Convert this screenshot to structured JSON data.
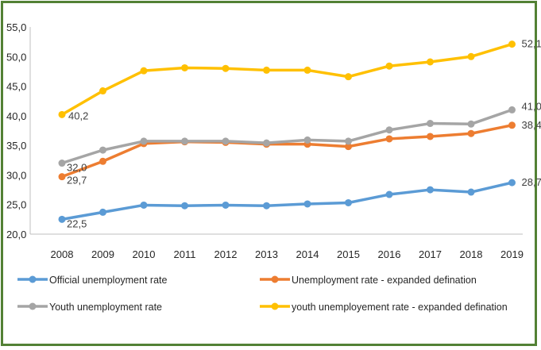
{
  "colors": {
    "frame": "#538135",
    "axis": "#bfbfbf"
  },
  "chart_data": {
    "type": "line",
    "title": "",
    "xlabel": "",
    "ylabel": "",
    "x": [
      "2008",
      "2009",
      "2010",
      "2011",
      "2012",
      "2013",
      "2014",
      "2015",
      "2016",
      "2017",
      "2018",
      "2019"
    ],
    "ylim": [
      20,
      55
    ],
    "ytick_labels": [
      "20,0",
      "25,0",
      "30,0",
      "35,0",
      "40,0",
      "45,0",
      "50,0",
      "55,0"
    ],
    "grid": false,
    "legend_position": "bottom",
    "series": [
      {
        "name": "Official unemployment rate",
        "color": "#5b9bd5",
        "values": [
          22.5,
          23.7,
          24.9,
          24.8,
          24.9,
          24.8,
          25.1,
          25.3,
          26.7,
          27.5,
          27.1,
          28.7
        ],
        "labels": [
          {
            "index": 0,
            "text": "22,5"
          },
          {
            "index": 11,
            "text": "28,7"
          }
        ]
      },
      {
        "name": "Unemployment rate - expanded defination",
        "color": "#ed7d31",
        "values": [
          29.7,
          32.3,
          35.3,
          35.6,
          35.5,
          35.2,
          35.2,
          34.8,
          36.1,
          36.5,
          37.0,
          38.4
        ],
        "labels": [
          {
            "index": 0,
            "text": "29,7"
          },
          {
            "index": 11,
            "text": "38,4"
          }
        ]
      },
      {
        "name": "Youth unemployment rate",
        "color": "#a5a5a5",
        "values": [
          32.0,
          34.2,
          35.7,
          35.7,
          35.7,
          35.4,
          35.9,
          35.7,
          37.6,
          38.7,
          38.6,
          41.0
        ],
        "labels": [
          {
            "index": 0,
            "text": "32,0"
          },
          {
            "index": 11,
            "text": "41,0"
          }
        ]
      },
      {
        "name": "youth unemployement rate - expanded defination",
        "color": "#ffc000",
        "values": [
          40.2,
          44.2,
          47.6,
          48.1,
          48.0,
          47.7,
          47.7,
          46.6,
          48.4,
          49.1,
          50.0,
          52.1
        ],
        "labels": [
          {
            "index": 0,
            "text": "40,2"
          },
          {
            "index": 11,
            "text": "52,1"
          }
        ]
      }
    ]
  }
}
